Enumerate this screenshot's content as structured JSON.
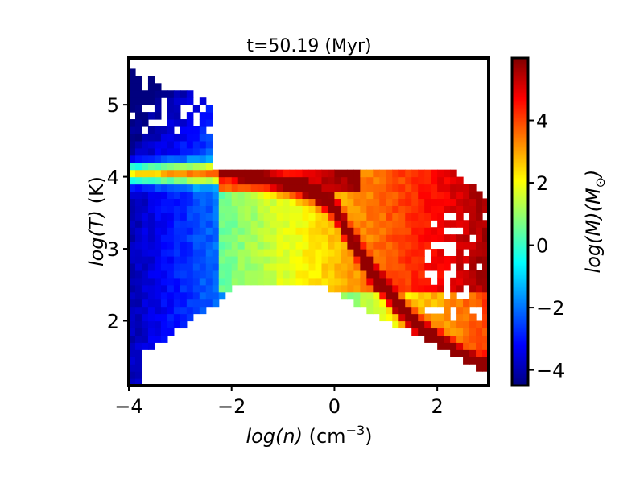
{
  "chart_data": {
    "type": "heatmap",
    "title": "t=50.19 (Myr)",
    "xlabel": {
      "italic": "log(n)",
      "unit_prefix": "(cm",
      "unit_exp": "−3",
      "unit_suffix": ")"
    },
    "ylabel": {
      "italic": "log(T)",
      "unit": "(K)"
    },
    "colorbar_label": {
      "prefix": "log(M)",
      "body": "(M",
      "sub": "⊙",
      "suffix": ")"
    },
    "xlim": [
      -4.0,
      3.0
    ],
    "ylim": [
      1.1,
      5.65
    ],
    "x_ticks": [
      -4,
      -2,
      0,
      2
    ],
    "x_tick_labels": [
      "−4",
      "−2",
      "0",
      "2"
    ],
    "y_ticks": [
      2,
      3,
      4,
      5
    ],
    "y_tick_labels": [
      "2",
      "3",
      "4",
      "5"
    ],
    "colorbar_range": [
      -4.5,
      6.0
    ],
    "colorbar_ticks": [
      -4,
      -2,
      0,
      2,
      4
    ],
    "colorbar_tick_labels": [
      "−4",
      "−2",
      "0",
      "2",
      "4"
    ],
    "colormap": "jet",
    "colormap_stops": [
      "#00007f",
      "#0000ff",
      "#007fff",
      "#00ffff",
      "#7fff7f",
      "#ffff00",
      "#ff7f00",
      "#ff0000",
      "#7f0000"
    ],
    "bins": {
      "dx": 0.125,
      "dy": 0.1
    },
    "description_of_distribution": {
      "ridge_points": [
        [
          -2.1,
          4.05
        ],
        [
          -1.5,
          4.0
        ],
        [
          -1.0,
          3.93
        ],
        [
          -0.5,
          3.85
        ],
        [
          0.0,
          3.6
        ],
        [
          0.2,
          3.3
        ],
        [
          0.5,
          2.95
        ],
        [
          0.8,
          2.6
        ],
        [
          1.2,
          2.25
        ],
        [
          1.6,
          1.95
        ],
        [
          2.0,
          1.7
        ],
        [
          2.5,
          1.45
        ],
        [
          2.9,
          1.3
        ]
      ],
      "ridge_peak_logM": 5.8
    }
  }
}
